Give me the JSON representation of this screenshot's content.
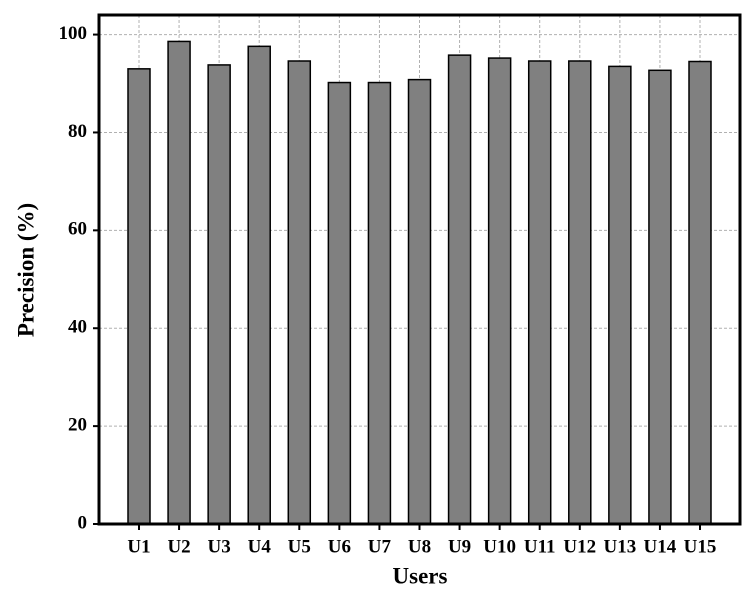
{
  "chart_data": {
    "type": "bar",
    "x_label": "Users",
    "y_label": "Precision (%)",
    "categories": [
      "U1",
      "U2",
      "U3",
      "U4",
      "U5",
      "U6",
      "U7",
      "U8",
      "U9",
      "U10",
      "U11",
      "U12",
      "U13",
      "U14",
      "U15"
    ],
    "values": [
      93,
      98.6,
      93.8,
      97.6,
      94.6,
      90.2,
      90.2,
      90.8,
      95.8,
      95.2,
      94.6,
      94.6,
      93.5,
      92.7,
      94.5
    ],
    "color": "#808080",
    "ylim": [
      0,
      104
    ],
    "yticks": [
      0,
      20,
      40,
      60,
      80,
      100
    ],
    "grid": true
  }
}
